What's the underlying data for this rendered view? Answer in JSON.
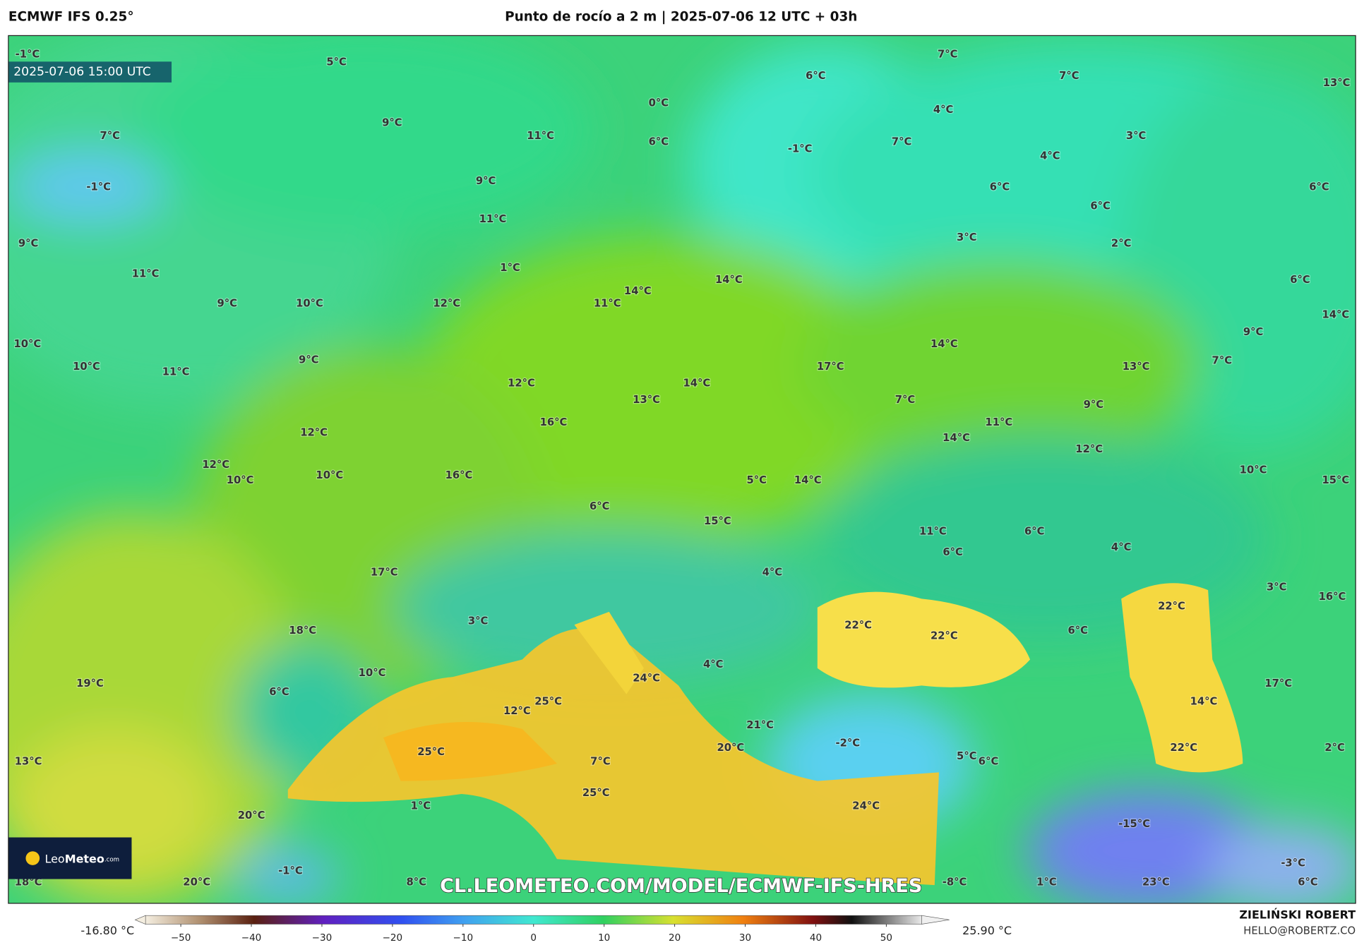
{
  "header": {
    "model": "ECMWF IFS 0.25°",
    "title": "Punto de rocío a 2 m | 2025-07-06 12 UTC + 03h"
  },
  "map": {
    "valid_time": "2025-07-06 15:00 UTC",
    "labels": [
      "-1°C",
      "5°C",
      "7°C",
      "6°C",
      "7°C",
      "13°C",
      "0°C",
      "4°C",
      "9°C",
      "7°C",
      "11°C",
      "6°C",
      "-1°C",
      "7°C",
      "3°C",
      "4°C",
      "-1°C",
      "9°C",
      "6°C",
      "6°C",
      "11°C",
      "6°C",
      "3°C",
      "2°C",
      "9°C",
      "1°C",
      "11°C",
      "14°C",
      "6°C",
      "9°C",
      "10°C",
      "12°C",
      "14°C",
      "11°C",
      "14°C",
      "9°C",
      "10°C",
      "14°C",
      "10°C",
      "11°C",
      "9°C",
      "17°C",
      "13°C",
      "7°C",
      "12°C",
      "14°C",
      "13°C",
      "7°C",
      "9°C",
      "11°C",
      "16°C",
      "12°C",
      "14°C",
      "12°C",
      "12°C",
      "10°C",
      "10°C",
      "16°C",
      "5°C",
      "14°C",
      "10°C",
      "15°C",
      "6°C",
      "15°C",
      "11°C",
      "6°C",
      "6°C",
      "4°C",
      "17°C",
      "4°C",
      "3°C",
      "16°C",
      "22°C",
      "18°C",
      "3°C",
      "22°C",
      "22°C",
      "6°C",
      "10°C",
      "24°C",
      "4°C",
      "19°C",
      "17°C",
      "6°C",
      "25°C",
      "14°C",
      "12°C",
      "21°C",
      "-2°C",
      "2°C",
      "20°C",
      "22°C",
      "25°C",
      "5°C",
      "6°C",
      "13°C",
      "7°C",
      "25°C",
      "1°C",
      "24°C",
      "20°C",
      "-15°C",
      "-3°C",
      "-1°C",
      "18°C",
      "20°C",
      "8°C",
      "-8°C",
      "1°C",
      "23°C",
      "6°C"
    ],
    "watermark": "CL.LEOMETEO.COM/MODEL/ECMWF-IFS-HRES",
    "logo": {
      "light": "Leo",
      "bold": "Meteo",
      "suffix": ".com"
    }
  },
  "colorbar": {
    "min_label": "-16.80 °C",
    "max_label": "25.90 °C",
    "range": [
      -55,
      55
    ],
    "ticks": [
      {
        "value": -50,
        "label": "−50"
      },
      {
        "value": -40,
        "label": "−40"
      },
      {
        "value": -30,
        "label": "−30"
      },
      {
        "value": -20,
        "label": "−20"
      },
      {
        "value": -10,
        "label": "−10"
      },
      0,
      10,
      20,
      30,
      40,
      50
    ]
  },
  "credits": {
    "author": "ZIELIŃSKI ROBERT",
    "contact": "HELLO@ROBERTZ.CO"
  }
}
